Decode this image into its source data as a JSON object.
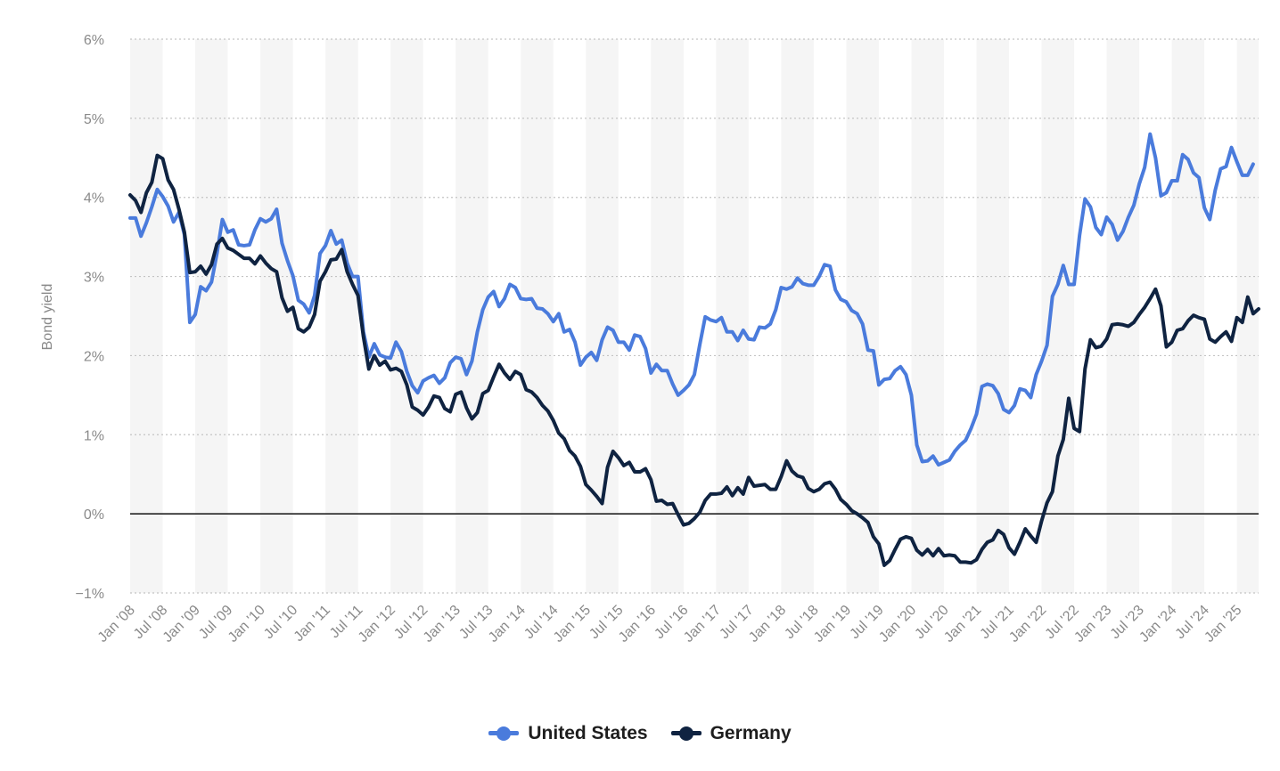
{
  "chart_data": {
    "type": "line",
    "ylabel": "Bond yield",
    "xlabel": "",
    "ylim": [
      -1,
      6
    ],
    "y_ticks": [
      "−1%",
      "0%",
      "1%",
      "2%",
      "3%",
      "4%",
      "5%",
      "6%"
    ],
    "grid": "horizontal dotted",
    "legend_position": "bottom-center",
    "x_start": "2008-01",
    "x_ticks": [
      "Jan '08",
      "Jul '08",
      "Jan '09",
      "Jul '09",
      "Jan '10",
      "Jul '10",
      "Jan '11",
      "Jul '11",
      "Jan '12",
      "Jul '12",
      "Jan '13",
      "Jul '13",
      "Jan '14",
      "Jul '14",
      "Jan '15",
      "Jul '15",
      "Jan '16",
      "Jul '16",
      "Jan '17",
      "Jul '17",
      "Jan '18",
      "Jul '18",
      "Jan '19",
      "Jul '19",
      "Jan '20",
      "Jul '20",
      "Jan '21",
      "Jul '21",
      "Jan '22",
      "Jul '22",
      "Jan '23",
      "Jul '23",
      "Jan '24",
      "Jul '24",
      "Jan '25"
    ],
    "series": [
      {
        "name": "United States",
        "color": "#4a7bdc",
        "values": [
          3.74,
          3.74,
          3.51,
          3.68,
          3.88,
          4.1,
          4.01,
          3.89,
          3.69,
          3.81,
          3.53,
          2.42,
          2.52,
          2.87,
          2.82,
          2.93,
          3.29,
          3.72,
          3.56,
          3.59,
          3.4,
          3.39,
          3.4,
          3.59,
          3.73,
          3.69,
          3.73,
          3.85,
          3.42,
          3.2,
          3.01,
          2.7,
          2.65,
          2.54,
          2.76,
          3.29,
          3.39,
          3.58,
          3.41,
          3.46,
          3.17,
          3.0,
          3.0,
          2.3,
          1.98,
          2.15,
          2.01,
          1.98,
          1.97,
          2.17,
          2.05,
          1.8,
          1.62,
          1.53,
          1.68,
          1.72,
          1.75,
          1.65,
          1.72,
          1.91,
          1.98,
          1.96,
          1.76,
          1.93,
          2.3,
          2.58,
          2.74,
          2.81,
          2.62,
          2.72,
          2.9,
          2.86,
          2.72,
          2.71,
          2.72,
          2.6,
          2.59,
          2.53,
          2.43,
          2.53,
          2.3,
          2.33,
          2.17,
          1.88,
          1.98,
          2.04,
          1.94,
          2.2,
          2.36,
          2.32,
          2.17,
          2.17,
          2.07,
          2.26,
          2.24,
          2.09,
          1.78,
          1.89,
          1.81,
          1.81,
          1.64,
          1.5,
          1.56,
          1.63,
          1.76,
          2.14,
          2.49,
          2.45,
          2.43,
          2.48,
          2.3,
          2.3,
          2.19,
          2.32,
          2.21,
          2.2,
          2.36,
          2.35,
          2.4,
          2.58,
          2.86,
          2.84,
          2.87,
          2.98,
          2.91,
          2.89,
          2.89,
          3.0,
          3.15,
          3.13,
          2.83,
          2.71,
          2.68,
          2.57,
          2.53,
          2.4,
          2.07,
          2.06,
          1.63,
          1.7,
          1.71,
          1.81,
          1.86,
          1.76,
          1.5,
          0.87,
          0.66,
          0.67,
          0.73,
          0.62,
          0.65,
          0.68,
          0.79,
          0.87,
          0.93,
          1.08,
          1.26,
          1.61,
          1.64,
          1.62,
          1.52,
          1.32,
          1.28,
          1.37,
          1.58,
          1.56,
          1.47,
          1.76,
          1.93,
          2.13,
          2.75,
          2.9,
          3.14,
          2.9,
          2.9,
          3.52,
          3.98,
          3.88,
          3.62,
          3.53,
          3.75,
          3.66,
          3.46,
          3.57,
          3.75,
          3.9,
          4.17,
          4.38,
          4.8,
          4.5,
          4.02,
          4.06,
          4.21,
          4.21,
          4.54,
          4.48,
          4.31,
          4.25,
          3.87,
          3.72,
          4.09,
          4.36,
          4.39,
          4.63,
          4.45,
          4.28,
          4.28,
          4.42
        ]
      },
      {
        "name": "Germany",
        "color": "#0f2341",
        "values": [
          4.03,
          3.96,
          3.81,
          4.06,
          4.19,
          4.53,
          4.49,
          4.22,
          4.1,
          3.85,
          3.56,
          3.05,
          3.06,
          3.13,
          3.03,
          3.15,
          3.41,
          3.48,
          3.36,
          3.33,
          3.28,
          3.23,
          3.23,
          3.16,
          3.26,
          3.17,
          3.1,
          3.06,
          2.73,
          2.56,
          2.61,
          2.34,
          2.3,
          2.36,
          2.52,
          2.94,
          3.06,
          3.21,
          3.22,
          3.34,
          3.06,
          2.9,
          2.76,
          2.24,
          1.83,
          2.0,
          1.88,
          1.93,
          1.82,
          1.84,
          1.8,
          1.63,
          1.35,
          1.31,
          1.25,
          1.35,
          1.49,
          1.47,
          1.33,
          1.29,
          1.51,
          1.54,
          1.34,
          1.2,
          1.28,
          1.52,
          1.56,
          1.73,
          1.89,
          1.78,
          1.7,
          1.8,
          1.76,
          1.57,
          1.54,
          1.47,
          1.37,
          1.3,
          1.18,
          1.02,
          0.95,
          0.8,
          0.73,
          0.6,
          0.37,
          0.3,
          0.22,
          0.13,
          0.59,
          0.79,
          0.71,
          0.61,
          0.65,
          0.53,
          0.53,
          0.57,
          0.43,
          0.16,
          0.17,
          0.12,
          0.13,
          -0.01,
          -0.14,
          -0.12,
          -0.06,
          0.02,
          0.17,
          0.25,
          0.25,
          0.26,
          0.34,
          0.23,
          0.33,
          0.25,
          0.46,
          0.35,
          0.36,
          0.37,
          0.31,
          0.31,
          0.47,
          0.67,
          0.54,
          0.48,
          0.46,
          0.32,
          0.28,
          0.31,
          0.38,
          0.4,
          0.31,
          0.18,
          0.12,
          0.04,
          0.0,
          -0.05,
          -0.11,
          -0.29,
          -0.38,
          -0.65,
          -0.59,
          -0.45,
          -0.32,
          -0.29,
          -0.31,
          -0.46,
          -0.52,
          -0.45,
          -0.53,
          -0.44,
          -0.53,
          -0.52,
          -0.53,
          -0.61,
          -0.61,
          -0.62,
          -0.58,
          -0.45,
          -0.36,
          -0.33,
          -0.21,
          -0.26,
          -0.43,
          -0.51,
          -0.36,
          -0.19,
          -0.28,
          -0.36,
          -0.09,
          0.14,
          0.28,
          0.73,
          0.94,
          1.46,
          1.08,
          1.04,
          1.83,
          2.2,
          2.1,
          2.12,
          2.21,
          2.39,
          2.4,
          2.39,
          2.37,
          2.42,
          2.52,
          2.61,
          2.72,
          2.84,
          2.63,
          2.11,
          2.17,
          2.32,
          2.34,
          2.44,
          2.51,
          2.48,
          2.46,
          2.21,
          2.17,
          2.24,
          2.3,
          2.18,
          2.48,
          2.42,
          2.74,
          2.53,
          2.59
        ]
      }
    ]
  }
}
